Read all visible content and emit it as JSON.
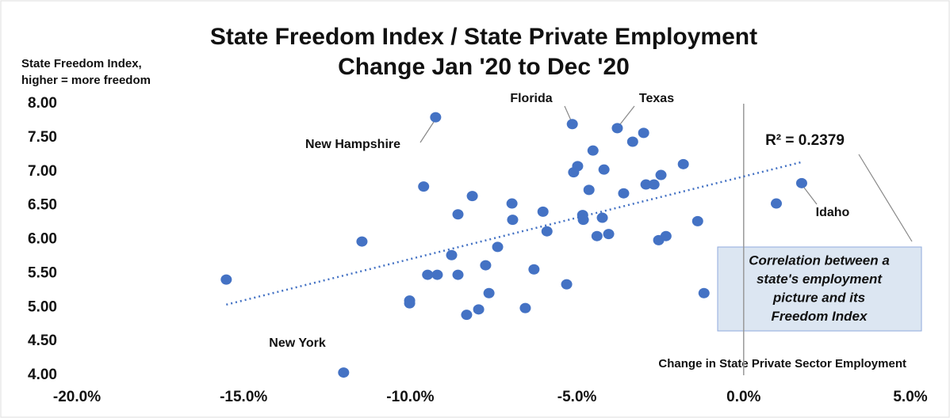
{
  "chart_data": {
    "type": "scatter",
    "title": [
      "State Freedom Index / State Private Employment",
      "Change Jan '20 to Dec '20"
    ],
    "y_label": [
      "State Freedom Index,",
      "higher = more freedom"
    ],
    "x_label": "Change in State Private Sector Employment",
    "color": "#4472c4",
    "xlim": [
      -20,
      5
    ],
    "xticks": [
      {
        "value": -20,
        "label": "-20.0%"
      },
      {
        "value": -15,
        "label": "-15.0%"
      },
      {
        "value": -10,
        "label": "-10.0%"
      },
      {
        "value": -5,
        "label": "-5.0%"
      },
      {
        "value": 0,
        "label": "0.0%"
      },
      {
        "value": 5,
        "label": "5.0%"
      }
    ],
    "ylim": [
      4,
      8
    ],
    "yticks": [
      {
        "value": 4,
        "label": "4.00"
      },
      {
        "value": 4.5,
        "label": "4.50"
      },
      {
        "value": 5,
        "label": "5.00"
      },
      {
        "value": 5.5,
        "label": "5.50"
      },
      {
        "value": 6,
        "label": "6.00"
      },
      {
        "value": 6.5,
        "label": "6.50"
      },
      {
        "value": 7,
        "label": "7.00"
      },
      {
        "value": 7.5,
        "label": "7.50"
      },
      {
        "value": 8,
        "label": "8.00"
      }
    ],
    "x": [
      -15.52,
      -11.45,
      -9.24,
      -9.6,
      -12.0,
      -10.02,
      -10.02,
      -9.48,
      -9.19,
      -8.76,
      -8.57,
      -8.57,
      -8.14,
      -8.31,
      -7.95,
      -7.74,
      -7.64,
      -7.38,
      -6.95,
      -6.93,
      -6.55,
      -6.29,
      -6.02,
      -5.9,
      -5.31,
      -5.14,
      -5.1,
      -4.98,
      -4.83,
      -4.81,
      -4.64,
      -4.52,
      -4.4,
      -4.24,
      -4.19,
      -4.05,
      -3.79,
      -3.6,
      -3.33,
      -3.0,
      -2.93,
      -2.69,
      -2.55,
      -2.48,
      -2.33,
      -1.81,
      -1.38,
      -1.19,
      0.98,
      1.74
    ],
    "values": [
      5.41,
      5.97,
      7.8,
      6.78,
      4.04,
      5.1,
      5.06,
      5.48,
      5.48,
      5.77,
      5.48,
      6.37,
      6.64,
      4.89,
      4.97,
      5.62,
      5.21,
      5.89,
      6.53,
      6.29,
      4.99,
      5.56,
      6.41,
      6.12,
      5.34,
      7.7,
      6.99,
      7.08,
      6.36,
      6.29,
      6.73,
      7.31,
      6.05,
      6.32,
      7.03,
      6.08,
      7.64,
      6.68,
      7.44,
      7.57,
      6.81,
      6.81,
      5.99,
      6.95,
      6.05,
      7.11,
      6.27,
      5.21,
      6.53,
      6.83
    ],
    "trendline": {
      "x": [
        -15.52,
        1.74
      ],
      "y": [
        5.04,
        7.14
      ]
    },
    "vline": 0,
    "annotations": [
      "Florida",
      "Texas",
      "New Hampshire",
      "New York",
      "Idaho",
      "R² = 0.2379"
    ],
    "note": [
      "Correlation between a",
      "state's employment",
      "picture and its",
      "Freedom Index"
    ]
  }
}
